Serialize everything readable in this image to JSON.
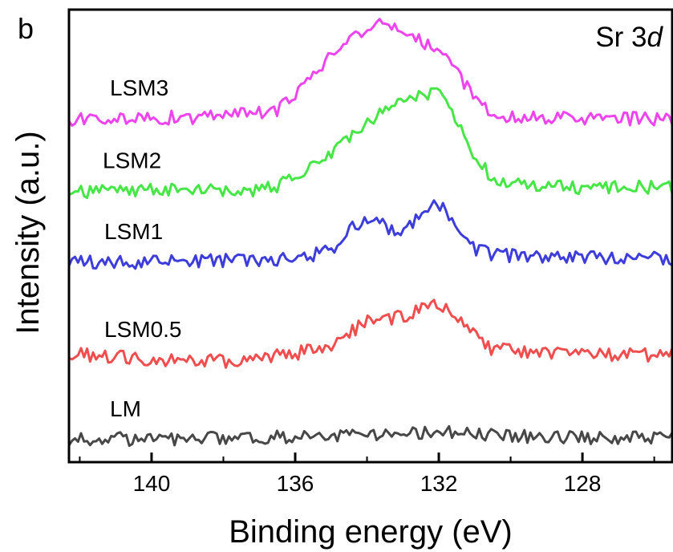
{
  "panel_label": "b",
  "chart_data": {
    "type": "line",
    "title": "",
    "annotation_parts": [
      "Sr 3",
      "d"
    ],
    "xlabel": "Binding energy  (eV)",
    "ylabel": "Intensity  (a.u.)",
    "xlim": [
      142.3,
      125.5
    ],
    "x_reversed": true,
    "ylim": [
      0,
      5.6
    ],
    "x_ticks": [
      140,
      136,
      132,
      128
    ],
    "x_tick_labels": [
      "140",
      "136",
      "132",
      "128"
    ],
    "y_ticks": [],
    "grid": false,
    "legend": "none (series labelled directly above each trace)",
    "series": [
      {
        "name": "LM",
        "color": "#474747",
        "x": [
          142.3,
          140,
          138,
          136,
          134,
          133,
          132,
          131,
          130,
          128,
          125.5
        ],
        "y": [
          0.28,
          0.29,
          0.3,
          0.31,
          0.34,
          0.36,
          0.37,
          0.34,
          0.32,
          0.3,
          0.29
        ]
      },
      {
        "name": "LSM0.5",
        "color": "#f04e4e",
        "x": [
          142.3,
          140,
          137.5,
          136,
          135,
          134,
          133,
          132.3,
          131.7,
          131.2,
          130.5,
          129,
          127,
          125.5
        ],
        "y": [
          1.35,
          1.27,
          1.25,
          1.34,
          1.45,
          1.75,
          1.8,
          1.94,
          1.92,
          1.7,
          1.39,
          1.35,
          1.33,
          1.33
        ]
      },
      {
        "name": "LSM1",
        "color": "#3d3ddb",
        "x": [
          142.3,
          140,
          138,
          136,
          135,
          134.5,
          134,
          133.5,
          133,
          132.5,
          132.1,
          131.7,
          131.2,
          130.5,
          129,
          127,
          125.5
        ],
        "y": [
          2.48,
          2.48,
          2.5,
          2.52,
          2.62,
          2.88,
          2.98,
          2.92,
          2.82,
          3.04,
          3.28,
          3.0,
          2.68,
          2.56,
          2.54,
          2.52,
          2.52
        ]
      },
      {
        "name": "LSM2",
        "color": "#45e645",
        "x": [
          142.3,
          140,
          138.5,
          137.5,
          136.5,
          135.8,
          135,
          134.5,
          134,
          133.5,
          133,
          132.5,
          132,
          131.5,
          131,
          130.5,
          129.5,
          128,
          126.5,
          125.5
        ],
        "y": [
          3.35,
          3.36,
          3.37,
          3.33,
          3.42,
          3.58,
          3.82,
          3.98,
          4.18,
          4.38,
          4.44,
          4.58,
          4.56,
          4.24,
          3.78,
          3.52,
          3.44,
          3.4,
          3.4,
          3.4
        ]
      },
      {
        "name": "LSM3",
        "color": "#ee44ee",
        "x": [
          142.3,
          140,
          138.5,
          137.5,
          136.5,
          136,
          135.5,
          135,
          134.5,
          134,
          133.5,
          133,
          132.5,
          132,
          131.5,
          131,
          130.5,
          130,
          129,
          127,
          125.5
        ],
        "y": [
          4.25,
          4.26,
          4.27,
          4.31,
          4.36,
          4.52,
          4.82,
          5.02,
          5.18,
          5.36,
          5.42,
          5.34,
          5.22,
          5.08,
          4.84,
          4.48,
          4.32,
          4.28,
          4.27,
          4.25,
          4.25
        ]
      }
    ],
    "series_labels": [
      {
        "text": "LM",
        "series": "LM"
      },
      {
        "text": "LSM0.5",
        "series": "LSM0.5"
      },
      {
        "text": "LSM1",
        "series": "LSM1"
      },
      {
        "text": "LSM2",
        "series": "LSM2"
      },
      {
        "text": "LSM3",
        "series": "LSM3"
      }
    ]
  }
}
